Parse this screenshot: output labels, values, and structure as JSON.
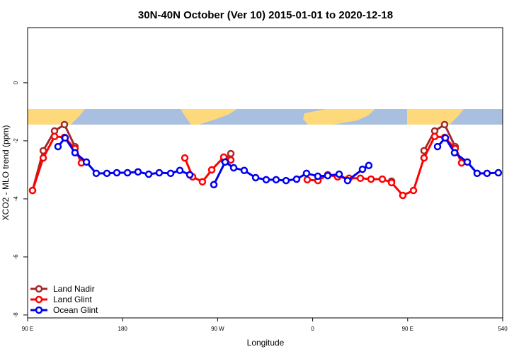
{
  "chart_data": {
    "type": "line",
    "title": "30N-40N October (Ver 10)   2015-01-01 to 2020-12-18",
    "x_label": "Longitude",
    "y_label": "XCO2 - MLO trend (ppm)",
    "xlim": [
      90,
      540
    ],
    "xticks": [
      {
        "value": 90,
        "label": "90 E"
      },
      180,
      {
        "value": 270,
        "label": "90 W"
      },
      {
        "value": 360,
        "label": "0"
      },
      {
        "value": 450,
        "label": "90 E"
      },
      540
    ],
    "ylim": [
      -8.1,
      1.9
    ],
    "yticks": [
      -8,
      -6,
      -4,
      -2,
      0
    ],
    "legend": "bottom-left",
    "series": [
      {
        "name": "Land Nadir",
        "color": "#a52a2a",
        "x": [
          94.7,
          104.8,
          115.5,
          124.9,
          134.9,
          141,
          null,
          275.8,
          282.5,
          null,
          434.7,
          null,
          465.5,
          475.6,
          485,
          495,
          501.1
        ],
        "values": [
          -3.71,
          -2.34,
          -1.66,
          -1.44,
          -2.2,
          -2.76,
          null,
          -2.66,
          -2.44,
          null,
          -3.39,
          null,
          -2.34,
          -1.66,
          -1.44,
          -2.2,
          -2.76
        ]
      },
      {
        "name": "Land Glint",
        "color": "#ff0000",
        "x": [
          94.7,
          104.8,
          115.5,
          124.9,
          134.9,
          141,
          null,
          238.9,
          246.3,
          255.6,
          264.4,
          275.8,
          282.5,
          null,
          354.9,
          365,
          374.3,
          383.7,
          394.5,
          405.2,
          415.3,
          426,
          434.7,
          445.4,
          455.5,
          465.5,
          475.6,
          485,
          495,
          501.1
        ],
        "values": [
          -3.71,
          -2.59,
          -1.85,
          -1.88,
          -2.27,
          -2.76,
          null,
          -2.59,
          -3.24,
          -3.41,
          -3.0,
          -2.56,
          -2.66,
          null,
          -3.34,
          -3.37,
          -3.17,
          -3.24,
          -3.29,
          -3.29,
          -3.32,
          -3.32,
          -3.44,
          -3.88,
          -3.71,
          -2.59,
          -1.85,
          -1.88,
          -2.27,
          -2.76
        ]
      },
      {
        "name": "Ocean Glint",
        "color": "#0000ee",
        "x": [
          118.8,
          125.5,
          134.9,
          145.7,
          155,
          165.1,
          174.5,
          184.6,
          194.6,
          204.7,
          214.7,
          225.5,
          234.2,
          243.6,
          null,
          266.4,
          277.1,
          285.2,
          295.2,
          306,
          316,
          325.4,
          334.8,
          344.8,
          354.2,
          364.9,
          374.3,
          385.1,
          393.1,
          407.2,
          413.2,
          null,
          478.3,
          485.7,
          494.4,
          506.5,
          515.8,
          525.2,
          535.9
        ],
        "values": [
          -2.2,
          -1.9,
          -2.41,
          -2.73,
          -3.12,
          -3.12,
          -3.1,
          -3.1,
          -3.07,
          -3.15,
          -3.1,
          -3.12,
          -3.02,
          -3.17,
          null,
          -3.51,
          -2.73,
          -2.93,
          -3.02,
          -3.27,
          -3.34,
          -3.34,
          -3.37,
          -3.32,
          -3.12,
          -3.22,
          -3.2,
          -3.15,
          -3.37,
          -2.98,
          -2.85,
          null,
          -2.2,
          -1.9,
          -2.41,
          -2.73,
          -3.12,
          -3.12,
          -3.1
        ]
      }
    ]
  }
}
